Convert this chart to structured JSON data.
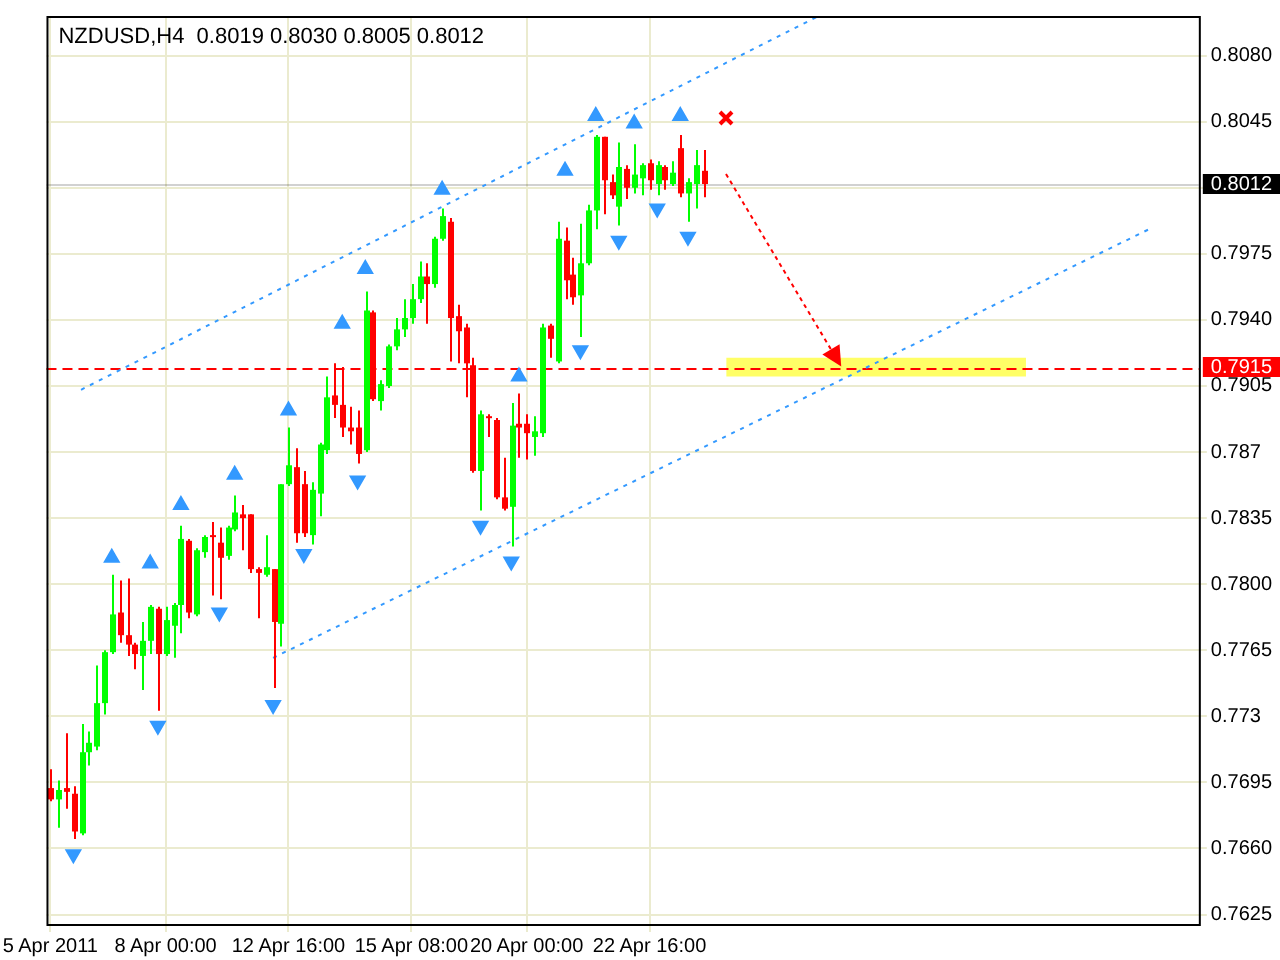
{
  "chart_data": {
    "type": "candlestick",
    "title": "NZDUSD,H4  0.8019 0.8030 0.8005 0.8012",
    "categories": [
      "5 Apr 2011",
      null,
      null,
      null,
      null,
      null,
      null,
      null,
      null,
      null,
      null,
      null,
      null,
      null,
      null,
      "8 Apr 00:00",
      null,
      null,
      null,
      null,
      null,
      null,
      null,
      null,
      null,
      null,
      null,
      null,
      null,
      null,
      null,
      "12 Apr 16:00",
      null,
      null,
      null,
      null,
      null,
      null,
      null,
      null,
      null,
      null,
      null,
      null,
      null,
      null,
      null,
      "15 Apr 08:00",
      null,
      null,
      null,
      null,
      null,
      null,
      null,
      null,
      null,
      null,
      null,
      null,
      null,
      null,
      "20 Apr 00:00",
      null,
      null,
      null,
      null,
      null,
      null,
      null,
      null,
      null,
      null,
      null,
      null,
      null,
      null,
      null,
      "22 Apr 16:00",
      null,
      null,
      null,
      null,
      null,
      null,
      null,
      null,
      null,
      null,
      null,
      null,
      null,
      null,
      null,
      null,
      null,
      null,
      null,
      null,
      null,
      null,
      null,
      null,
      null,
      null,
      null,
      null,
      null,
      null,
      null,
      null,
      null,
      null,
      null,
      null,
      null,
      null,
      null,
      null,
      null,
      null,
      null,
      null,
      null,
      null,
      null,
      null,
      null,
      null,
      null,
      null,
      null,
      null,
      null,
      null,
      null,
      null,
      null,
      null,
      null,
      null,
      null,
      null,
      null,
      null,
      null,
      null,
      null,
      null,
      null
    ],
    "ohlc": [
      [
        0.7692,
        0.7702,
        0.7685,
        0.7686
      ],
      [
        0.7686,
        0.7696,
        0.7671,
        0.7691
      ],
      [
        0.7692,
        0.7721,
        0.7681,
        0.769
      ],
      [
        0.7689,
        0.7693,
        0.7665,
        0.7669
      ],
      [
        0.7668,
        0.7726,
        0.7667,
        0.7711
      ],
      [
        0.7711,
        0.7722,
        0.7704,
        0.7716
      ],
      [
        0.7714,
        0.7757,
        0.7712,
        0.7737
      ],
      [
        0.7737,
        0.7765,
        0.7731,
        0.7764
      ],
      [
        0.7764,
        0.7805,
        0.7763,
        0.7784
      ],
      [
        0.7785,
        0.7802,
        0.7769,
        0.7773
      ],
      [
        0.7773,
        0.7803,
        0.7762,
        0.7768
      ],
      [
        0.7768,
        0.7769,
        0.7755,
        0.7763
      ],
      [
        0.7762,
        0.778,
        0.7744,
        0.777
      ],
      [
        0.777,
        0.7789,
        0.7763,
        0.7788
      ],
      [
        0.7787,
        0.7788,
        0.7733,
        0.7763
      ],
      [
        0.7763,
        0.7788,
        0.7762,
        0.7781
      ],
      [
        0.7778,
        0.779,
        0.7761,
        0.7789
      ],
      [
        0.7789,
        0.7831,
        0.7774,
        0.7824
      ],
      [
        0.7823,
        0.7824,
        0.7782,
        0.7785
      ],
      [
        0.7784,
        0.7819,
        0.7783,
        0.7818
      ],
      [
        0.7817,
        0.7826,
        0.7814,
        0.7825
      ],
      [
        0.7826,
        0.7833,
        0.7794,
        0.7825
      ],
      [
        0.7822,
        0.783,
        0.7792,
        0.7814
      ],
      [
        0.7815,
        0.7831,
        0.7813,
        0.783
      ],
      [
        0.7829,
        0.7847,
        0.7828,
        0.7838
      ],
      [
        0.7837,
        0.7842,
        0.7818,
        0.7835
      ],
      [
        0.7837,
        0.7837,
        0.7806,
        0.7808
      ],
      [
        0.7808,
        0.7809,
        0.7782,
        0.7806
      ],
      [
        0.7805,
        0.7826,
        0.7804,
        0.7809
      ],
      [
        0.7808,
        0.7808,
        0.7745,
        0.778
      ],
      [
        0.7779,
        0.7853,
        0.7767,
        0.7853
      ],
      [
        0.7853,
        0.7883,
        0.7852,
        0.7863
      ],
      [
        0.7862,
        0.7872,
        0.7822,
        0.7827
      ],
      [
        0.7853,
        0.786,
        0.7825,
        0.7827
      ],
      [
        0.7826,
        0.7854,
        0.7821,
        0.785
      ],
      [
        0.7848,
        0.7875,
        0.7836,
        0.7874
      ],
      [
        0.7871,
        0.791,
        0.7869,
        0.7899
      ],
      [
        0.79,
        0.7917,
        0.7888,
        0.7895
      ],
      [
        0.7895,
        0.7915,
        0.7878,
        0.7883
      ],
      [
        0.7883,
        0.7894,
        0.7874,
        0.7881
      ],
      [
        0.7883,
        0.7892,
        0.7864,
        0.7869
      ],
      [
        0.7871,
        0.7955,
        0.787,
        0.7945
      ],
      [
        0.7944,
        0.7945,
        0.7897,
        0.7898
      ],
      [
        0.7897,
        0.7908,
        0.7892,
        0.7906
      ],
      [
        0.7905,
        0.7927,
        0.7904,
        0.7926
      ],
      [
        0.7926,
        0.7941,
        0.7924,
        0.7935
      ],
      [
        0.7935,
        0.7951,
        0.7931,
        0.7941
      ],
      [
        0.7941,
        0.7959,
        0.7938,
        0.7951
      ],
      [
        0.7951,
        0.7971,
        0.7949,
        0.7963
      ],
      [
        0.7963,
        0.797,
        0.7938,
        0.7959
      ],
      [
        0.7959,
        0.7984,
        0.7957,
        0.7983
      ],
      [
        0.7983,
        0.7999,
        0.7982,
        0.7995
      ],
      [
        0.7992,
        0.7994,
        0.7918,
        0.7941
      ],
      [
        0.7942,
        0.7948,
        0.7917,
        0.7934
      ],
      [
        0.7936,
        0.7938,
        0.7899,
        0.7917
      ],
      [
        0.7916,
        0.792,
        0.7859,
        0.786
      ],
      [
        0.786,
        0.7892,
        0.7839,
        0.789
      ],
      [
        0.7889,
        0.789,
        0.7878,
        0.7888
      ],
      [
        0.7887,
        0.7888,
        0.7845,
        0.7846
      ],
      [
        0.7846,
        0.7867,
        0.7839,
        0.784
      ],
      [
        0.7841,
        0.7896,
        0.782,
        0.7884
      ],
      [
        0.7885,
        0.7901,
        0.7867,
        0.7883
      ],
      [
        0.7885,
        0.789,
        0.7866,
        0.788
      ],
      [
        0.7878,
        0.7889,
        0.7868,
        0.7881
      ],
      [
        0.788,
        0.7938,
        0.7878,
        0.7936
      ],
      [
        0.7937,
        0.7938,
        0.792,
        0.793
      ],
      [
        0.7918,
        0.7992,
        0.7917,
        0.7983
      ],
      [
        0.7982,
        0.7989,
        0.7951,
        0.7961
      ],
      [
        0.7964,
        0.7973,
        0.7948,
        0.7952
      ],
      [
        0.7953,
        0.7991,
        0.7931,
        0.797
      ],
      [
        0.797,
        0.8001,
        0.7969,
        0.7998
      ],
      [
        0.7998,
        0.8038,
        0.7988,
        0.8037
      ],
      [
        0.8037,
        0.8037,
        0.7996,
        0.8014
      ],
      [
        0.8013,
        0.8017,
        0.8004,
        0.8006
      ],
      [
        0.8,
        0.8034,
        0.799,
        0.8021
      ],
      [
        0.802,
        0.8022,
        0.8004,
        0.801
      ],
      [
        0.801,
        0.8033,
        0.8007,
        0.8017
      ],
      [
        0.8015,
        0.8023,
        0.8006,
        0.8022
      ],
      [
        0.8023,
        0.8025,
        0.8009,
        0.8014
      ],
      [
        0.8012,
        0.8024,
        0.8006,
        0.8022
      ],
      [
        0.8021,
        0.8022,
        0.8009,
        0.8014
      ],
      [
        0.8012,
        0.8024,
        0.8011,
        0.8018
      ],
      [
        0.8031,
        0.8038,
        0.8005,
        0.8007
      ],
      [
        0.8007,
        0.8015,
        0.7992,
        0.8013
      ],
      [
        0.8012,
        0.803,
        0.7999,
        0.8022
      ],
      [
        0.8019,
        0.803,
        0.8005,
        0.8012
      ],
      null,
      null,
      null,
      null,
      null,
      null,
      null,
      null,
      null,
      null,
      null,
      null,
      null,
      null,
      null,
      null,
      null,
      null,
      null,
      null,
      null,
      null,
      null,
      null,
      null,
      null,
      null,
      null,
      null,
      null,
      null,
      null,
      null,
      null,
      null,
      null,
      null,
      null,
      null,
      null,
      null,
      null,
      null,
      null,
      null,
      null,
      null,
      null,
      null,
      null,
      null,
      null,
      null,
      null,
      null,
      null,
      null,
      null,
      null,
      null,
      null,
      null,
      null,
      null
    ],
    "colors": [
      "#ff0000",
      "#00ff00",
      "#ff0000",
      "#ff0000",
      "#00ff00",
      "#00ff00",
      "#00ff00",
      "#00ff00",
      "#00ff00",
      "#ff0000",
      "#ff0000",
      "#ff0000",
      "#00ff00",
      "#00ff00",
      "#ff0000",
      "#00ff00",
      "#00ff00",
      "#00ff00",
      "#ff0000",
      "#00ff00",
      "#00ff00",
      "#ff0000",
      "#ff0000",
      "#00ff00",
      "#00ff00",
      "#ff0000",
      "#ff0000",
      "#ff0000",
      "#00ff00",
      "#ff0000",
      "#00ff00",
      "#00ff00",
      "#ff0000",
      "#ff0000",
      "#00ff00",
      "#00ff00",
      "#00ff00",
      "#ff0000",
      "#ff0000",
      "#ff0000",
      "#ff0000",
      "#00ff00",
      "#ff0000",
      "#00ff00",
      "#00ff00",
      "#00ff00",
      "#00ff00",
      "#00ff00",
      "#00ff00",
      "#ff0000",
      "#00ff00",
      "#00ff00",
      "#ff0000",
      "#ff0000",
      "#ff0000",
      "#ff0000",
      "#00ff00",
      "#ff0000",
      "#ff0000",
      "#ff0000",
      "#00ff00",
      "#ff0000",
      "#ff0000",
      "#00ff00",
      "#00ff00",
      "#ff0000",
      "#00ff00",
      "#ff0000",
      "#ff0000",
      "#00ff00",
      "#00ff00",
      "#00ff00",
      "#ff0000",
      "#ff0000",
      "#00ff00",
      "#ff0000",
      "#00ff00",
      "#00ff00",
      "#ff0000",
      "#00ff00",
      "#ff0000",
      "#00ff00",
      "#ff0000",
      "#00ff00",
      "#00ff00",
      "#ff0000",
      null,
      null,
      null,
      null,
      null,
      null,
      null,
      null,
      null,
      null,
      null,
      null,
      null,
      null,
      null,
      null,
      null,
      null,
      null,
      null,
      null,
      null,
      null,
      null,
      null,
      null,
      null,
      null,
      null,
      null,
      null,
      null,
      null,
      null,
      null,
      null,
      null,
      null,
      null,
      null,
      null,
      null,
      null,
      null,
      null,
      null,
      null,
      null,
      null,
      null,
      null,
      null,
      null,
      null,
      null,
      null,
      null,
      null,
      null,
      null,
      null,
      null,
      null,
      null
    ],
    "series": [
      {
        "type": "line",
        "color": "#3399ff",
        "line_style": "dotted",
        "values": [
          null,
          null,
          null,
          null,
          0.7903,
          null,
          null,
          null,
          null,
          null,
          null,
          null,
          null,
          null,
          null,
          null,
          null,
          null,
          null,
          null,
          null,
          null,
          null,
          null,
          null,
          null,
          null,
          null,
          null,
          null,
          null,
          null,
          null,
          null,
          null,
          null,
          null,
          null,
          null,
          null,
          null,
          null,
          null,
          null,
          null,
          null,
          null,
          null,
          null,
          null,
          null,
          null,
          null,
          null,
          null,
          null,
          null,
          null,
          null,
          null,
          null,
          null,
          null,
          null,
          null,
          null,
          null,
          null,
          null,
          null,
          null,
          null,
          null,
          null,
          null,
          null,
          null,
          null,
          null,
          null,
          null,
          null,
          null,
          null,
          null,
          null,
          null,
          null,
          null,
          null,
          null,
          null,
          null,
          null,
          null,
          null,
          null,
          null,
          null,
          null,
          0.8101,
          null,
          null,
          null,
          null,
          null,
          null,
          null,
          null,
          null,
          null,
          null,
          null,
          null,
          null,
          null,
          null,
          null,
          null,
          null,
          null,
          null,
          null,
          null,
          null,
          null,
          null,
          null,
          null,
          null,
          null,
          null,
          null,
          null,
          null,
          null,
          null,
          null,
          null,
          null,
          null,
          null,
          null,
          null,
          null,
          null,
          null,
          null,
          null,
          null
        ]
      },
      {
        "type": "line",
        "color": "#3399ff",
        "line_style": "dotted",
        "values": [
          null,
          null,
          null,
          null,
          null,
          null,
          null,
          null,
          null,
          null,
          null,
          null,
          null,
          null,
          null,
          null,
          null,
          null,
          null,
          null,
          null,
          null,
          null,
          null,
          null,
          null,
          null,
          null,
          null,
          0.7761,
          null,
          null,
          null,
          null,
          null,
          null,
          null,
          null,
          null,
          null,
          null,
          null,
          null,
          null,
          null,
          null,
          null,
          null,
          null,
          null,
          null,
          null,
          null,
          null,
          null,
          null,
          null,
          null,
          null,
          null,
          null,
          null,
          null,
          null,
          null,
          null,
          null,
          null,
          null,
          null,
          null,
          null,
          null,
          null,
          null,
          null,
          null,
          null,
          null,
          null,
          null,
          null,
          null,
          null,
          null,
          null,
          null,
          null,
          null,
          null,
          null,
          null,
          null,
          null,
          null,
          null,
          null,
          null,
          null,
          null,
          null,
          null,
          null,
          null,
          null,
          null,
          null,
          null,
          null,
          null,
          null,
          null,
          null,
          null,
          null,
          null,
          null,
          null,
          null,
          null,
          null,
          null,
          null,
          null,
          null,
          null,
          null,
          null,
          null,
          null,
          null,
          null,
          null,
          null,
          null,
          null,
          null,
          null,
          null,
          null,
          null,
          null,
          null,
          0.7988,
          null,
          null,
          null,
          null,
          null,
          null
        ]
      },
      {
        "type": "scatter",
        "color": "#3399ff",
        "marker": "triangle",
        "values": [
          null,
          null,
          null,
          null,
          null,
          null,
          null,
          null,
          0.7814,
          null,
          null,
          null,
          null,
          0.7811,
          null,
          null,
          null,
          0.7842,
          null,
          null,
          null,
          null,
          null,
          null,
          0.7858,
          null,
          null,
          null,
          null,
          null,
          null,
          0.7892,
          null,
          null,
          null,
          null,
          null,
          null,
          0.7938,
          null,
          null,
          0.7967,
          null,
          null,
          null,
          null,
          null,
          null,
          null,
          null,
          null,
          0.8009,
          null,
          null,
          null,
          null,
          null,
          null,
          null,
          null,
          null,
          0.791,
          null,
          null,
          null,
          null,
          null,
          0.8019,
          null,
          null,
          null,
          0.8048,
          null,
          null,
          null,
          null,
          0.8044,
          null,
          null,
          null,
          null,
          null,
          0.8048,
          null,
          null,
          null,
          null,
          null,
          null,
          null,
          null,
          null,
          null,
          null,
          null,
          null,
          null,
          null,
          null,
          null,
          null,
          null,
          null,
          null,
          null,
          null,
          null,
          null,
          null,
          null,
          null,
          null,
          null,
          null,
          null,
          null,
          null,
          null,
          null,
          null,
          null,
          null,
          null,
          null,
          null,
          null,
          null,
          null,
          null,
          null,
          null,
          null,
          null,
          null,
          null,
          null,
          null,
          null,
          null,
          null,
          null,
          null,
          null,
          null,
          null,
          null,
          null,
          null,
          null,
          null
        ]
      },
      {
        "type": "scatter",
        "color": "#3399ff",
        "marker": "triangle",
        "values": [
          null,
          null,
          null,
          0.7657,
          null,
          null,
          null,
          null,
          null,
          null,
          null,
          null,
          null,
          null,
          0.7725,
          null,
          null,
          null,
          null,
          null,
          null,
          null,
          0.7785,
          null,
          null,
          null,
          null,
          null,
          null,
          0.7736,
          null,
          null,
          null,
          0.7816,
          null,
          null,
          null,
          null,
          null,
          null,
          0.7855,
          null,
          null,
          null,
          null,
          null,
          null,
          null,
          null,
          null,
          null,
          null,
          null,
          null,
          null,
          null,
          0.7831,
          null,
          null,
          null,
          0.7812,
          null,
          null,
          null,
          null,
          null,
          null,
          null,
          null,
          0.7924,
          null,
          null,
          null,
          null,
          0.7982,
          null,
          null,
          null,
          null,
          0.7999,
          null,
          null,
          null,
          0.7984,
          null,
          null,
          null,
          null,
          null,
          null,
          null,
          null,
          null,
          null,
          null,
          null,
          null,
          null,
          null,
          null,
          null,
          null,
          null,
          null,
          null,
          null,
          null,
          null,
          null,
          null,
          null,
          null,
          null,
          null,
          null,
          null,
          null,
          null,
          null,
          null,
          null,
          null,
          null,
          null,
          null,
          null,
          null,
          null,
          null,
          null,
          null,
          null,
          null,
          null,
          null,
          null,
          null,
          null,
          null,
          null,
          null,
          null,
          null,
          null,
          null,
          null,
          null,
          null,
          null,
          null
        ]
      }
    ],
    "ylim": [
      0.762,
      0.8101
    ],
    "yticks": [
      {
        "value": 0.808,
        "label": "0.8080"
      },
      0.8045,
      {
        "value": 0.801,
        "label": null
      },
      0.7975,
      {
        "value": 0.794,
        "label": "0.7940"
      },
      0.7905,
      0.787,
      0.7835,
      {
        "value": 0.78,
        "label": "0.7800"
      },
      0.7765,
      0.773,
      0.7695,
      {
        "value": 0.766,
        "label": "0.7660"
      },
      0.7625
    ],
    "grid": true,
    "ref_lines": [
      {
        "axis": "y",
        "value": 0.8012,
        "label": "0.8012",
        "color": "#000000",
        "line_style": "solid"
      },
      {
        "axis": "y",
        "value": 0.7915,
        "label": "0.7915",
        "color": "#ff0000",
        "line_style": "dashed"
      }
    ],
    "bands": [
      {
        "axis": "y",
        "from": 0.791,
        "to": 0.792,
        "color": "#ffff66"
      }
    ]
  }
}
